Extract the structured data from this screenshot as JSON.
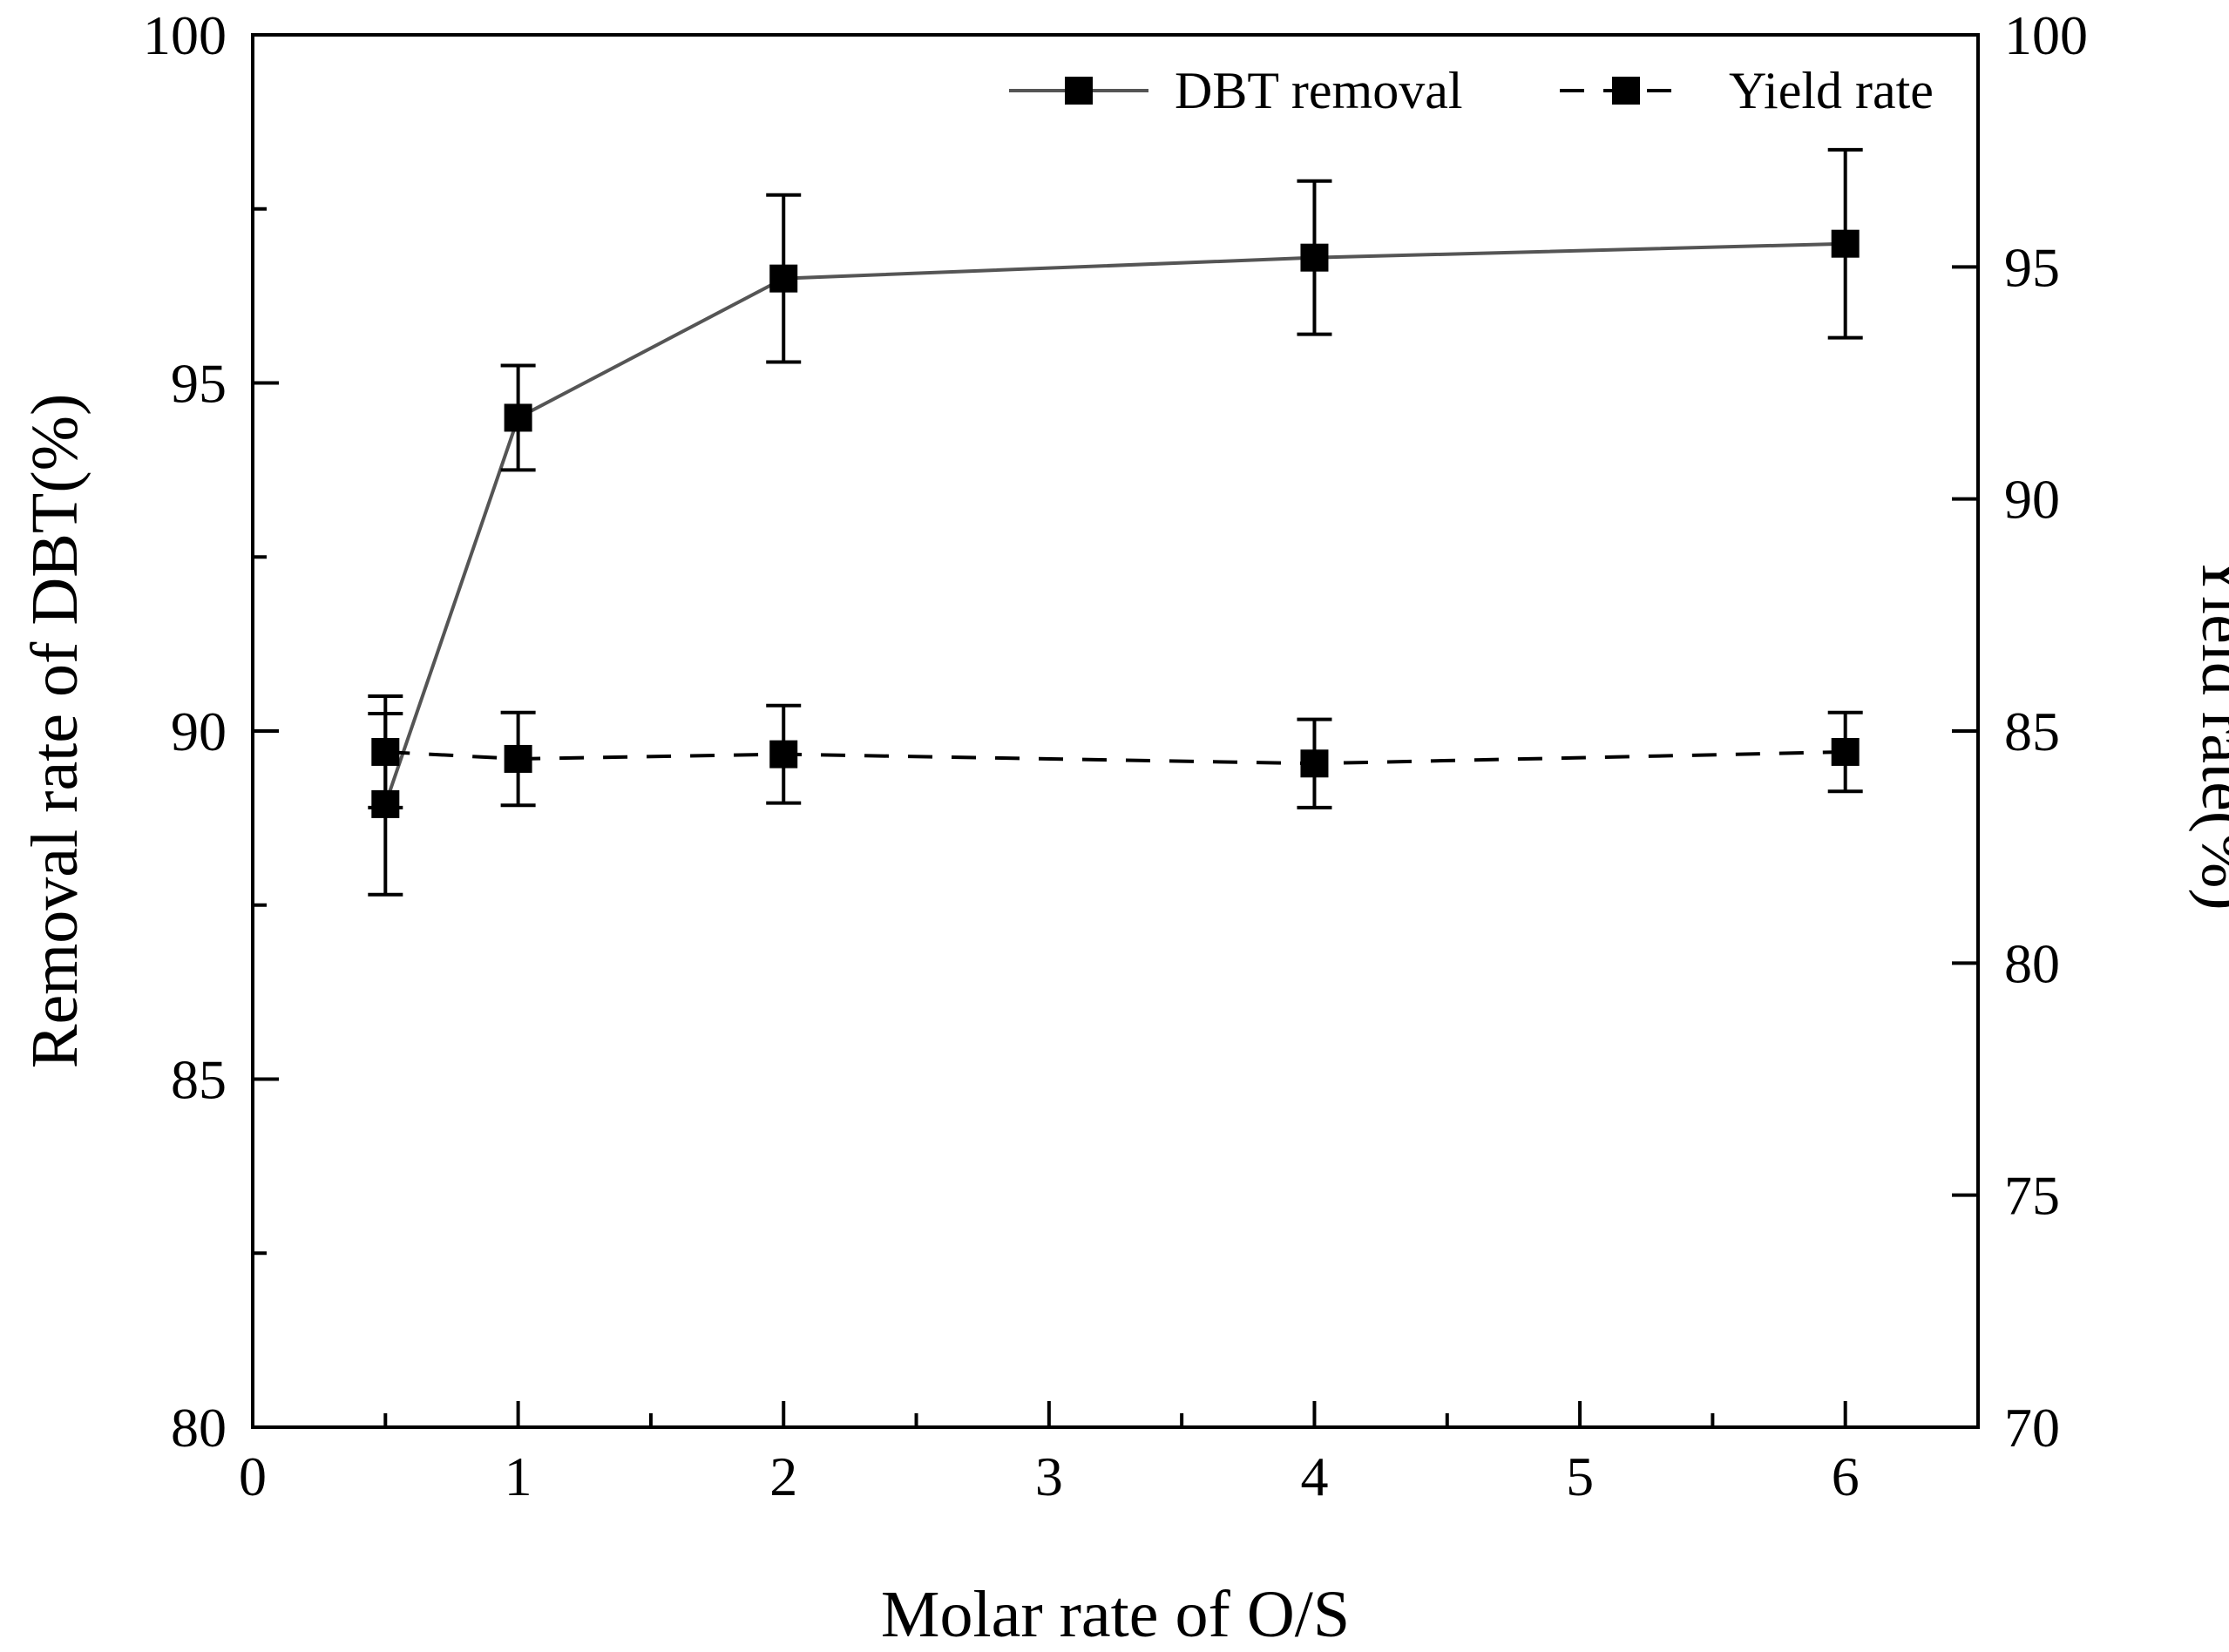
{
  "chart_data": {
    "type": "line",
    "title": "",
    "xlabel": "Molar rate of O/S",
    "ylabel": "Removal rate of DBT(%)",
    "y2label": "Yield rate(%)",
    "xlim": [
      0,
      6.5
    ],
    "ylim": [
      80,
      100
    ],
    "y2lim": [
      70,
      100
    ],
    "x_ticks": [
      0,
      1,
      2,
      3,
      4,
      5,
      6
    ],
    "y_ticks": [
      80,
      85,
      90,
      95,
      100
    ],
    "y2_ticks": [
      70,
      75,
      80,
      85,
      90,
      95,
      100
    ],
    "legend_position": "top-right",
    "series": [
      {
        "name": "DBT removal",
        "axis": "left",
        "line_style": "solid",
        "color": "#555555",
        "marker": "square",
        "x": [
          0.5,
          1,
          2,
          4,
          6
        ],
        "values": [
          88.95,
          94.5,
          96.5,
          96.8,
          97.0
        ],
        "errors": [
          1.3,
          0.75,
          1.2,
          1.1,
          1.35
        ]
      },
      {
        "name": "Yield rate",
        "axis": "right",
        "line_style": "dashed",
        "color": "#000000",
        "marker": "square",
        "x": [
          0.5,
          1,
          2,
          4,
          6
        ],
        "values": [
          84.55,
          84.4,
          84.5,
          84.3,
          84.55
        ],
        "errors": [
          1.2,
          1.0,
          1.05,
          0.95,
          0.85
        ]
      }
    ]
  }
}
